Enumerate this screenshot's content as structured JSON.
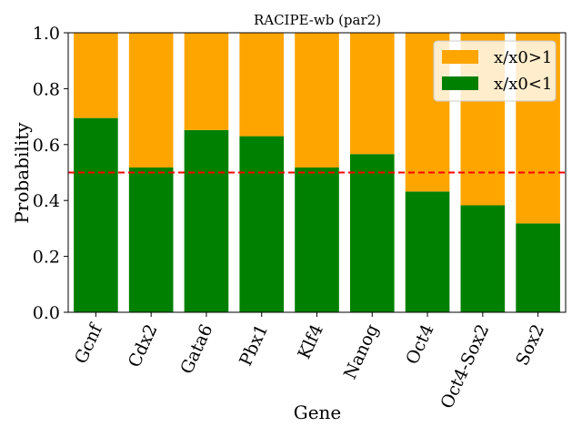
{
  "chart_data": {
    "type": "bar",
    "stacked": true,
    "title": "RACIPE-wb (par2)",
    "xlabel": "Gene",
    "ylabel": "Probability",
    "ylim": [
      0,
      1
    ],
    "yticks": [
      "0.0",
      "0.2",
      "0.4",
      "0.6",
      "0.8",
      "1.0"
    ],
    "categories": [
      "Gcnf",
      "Cdx2",
      "Gata6",
      "Pbx1",
      "Klf4",
      "Nanog",
      "Oct4",
      "Oct4-Sox2",
      "Sox2"
    ],
    "series": [
      {
        "name": "x/x0<1",
        "color": "#008000",
        "values": [
          0.695,
          0.518,
          0.652,
          0.63,
          0.518,
          0.566,
          0.432,
          0.383,
          0.318
        ]
      },
      {
        "name": "x/x0>1",
        "color": "#FFA500",
        "values": [
          0.305,
          0.482,
          0.348,
          0.37,
          0.482,
          0.434,
          0.568,
          0.617,
          0.682
        ]
      }
    ],
    "reference_line": {
      "y": 0.5,
      "color": "#FF0000",
      "style": "dashed"
    },
    "legend": {
      "placement": "top-right",
      "order": [
        "x/x0>1",
        "x/x0<1"
      ]
    },
    "grid": false
  }
}
